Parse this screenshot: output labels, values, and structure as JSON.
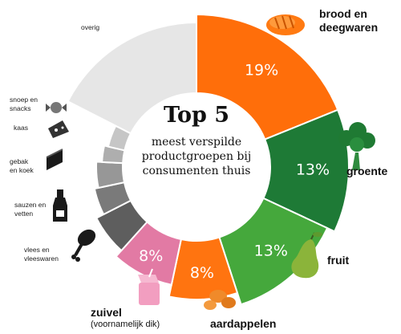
{
  "chart_data": {
    "type": "pie",
    "title": "Top 5",
    "subtitle": [
      "meest verspilde",
      "productgroepen bij",
      "consumenten thuis"
    ],
    "slices": [
      {
        "label": "brood en deegwaren",
        "value": 19,
        "value_label": "19%",
        "color": "#ff6e0a",
        "icon": "bread-icon"
      },
      {
        "label": "groente",
        "value": 13,
        "value_label": "13%",
        "color": "#1e7a36",
        "icon": "broccoli-icon"
      },
      {
        "label": "fruit",
        "value": 13,
        "value_label": "13%",
        "color": "#45a83c",
        "icon": "pear-icon"
      },
      {
        "label": "aardappelen",
        "value": 8,
        "value_label": "8%",
        "color": "#ff7410",
        "icon": "potato-icon"
      },
      {
        "label": "zuivel",
        "sublabel": "(voornamelijk dik)",
        "value": 8,
        "value_label": "8%",
        "color": "#e27aa4",
        "icon": "milk-carton-icon"
      },
      {
        "label": "vlees en vleeswaren",
        "color": "#5e5e5e",
        "icon": "drumstick-icon"
      },
      {
        "label": "sauzen en vetten",
        "color": "#7a7a7a",
        "icon": "sauce-bottle-icon"
      },
      {
        "label": "gebak en koek",
        "color": "#979797",
        "icon": "cake-icon"
      },
      {
        "label": "kaas",
        "color": "#aeaeae",
        "icon": "cheese-icon"
      },
      {
        "label": "snoep en snacks",
        "color": "#c6c6c6",
        "icon": "candy-icon"
      },
      {
        "label": "overig",
        "color": "#e6e6e6"
      }
    ]
  }
}
